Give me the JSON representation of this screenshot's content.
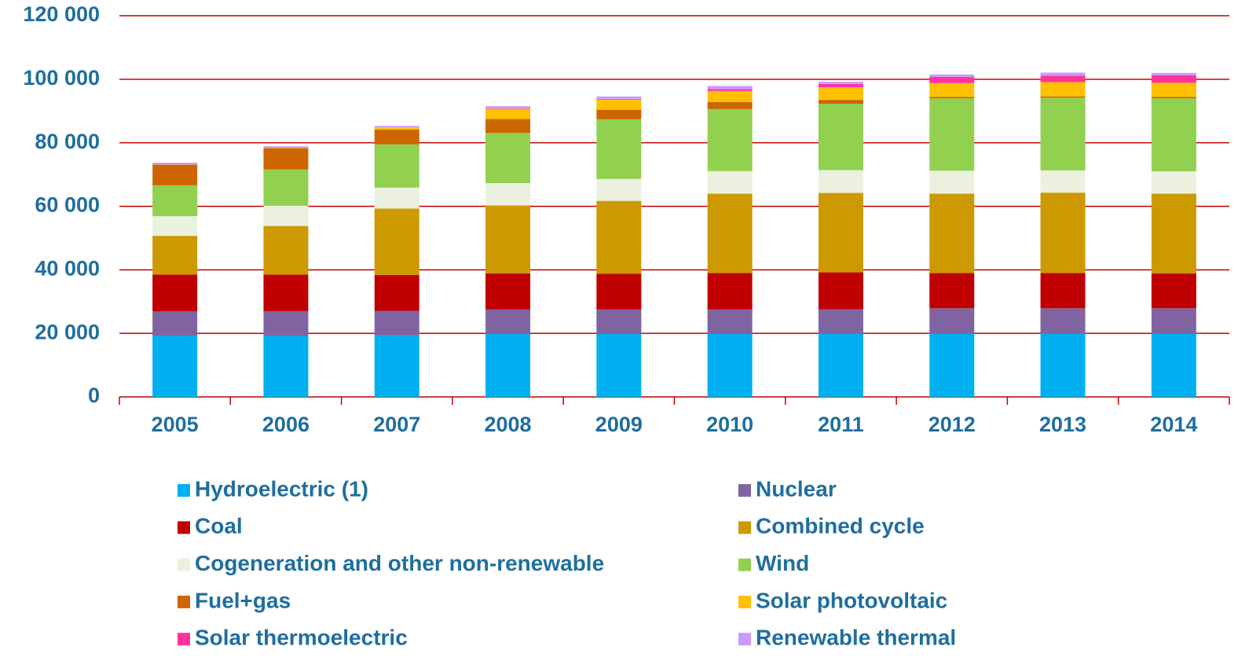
{
  "chart_data": {
    "type": "stacked_bar",
    "categories": [
      "2005",
      "2006",
      "2007",
      "2008",
      "2009",
      "2010",
      "2011",
      "2012",
      "2013",
      "2014"
    ],
    "series": [
      {
        "name": "Hydroelectric (1)",
        "color": "#00b0f0",
        "values": [
          19300,
          19300,
          19400,
          19800,
          19800,
          19800,
          19800,
          20000,
          20000,
          20000
        ]
      },
      {
        "name": "Nuclear",
        "color": "#8064a2",
        "values": [
          7600,
          7700,
          7700,
          7700,
          7700,
          7700,
          7800,
          7900,
          7900,
          7900
        ]
      },
      {
        "name": "Coal",
        "color": "#c00000",
        "values": [
          11600,
          11500,
          11300,
          11400,
          11300,
          11500,
          11600,
          11100,
          11100,
          11000
        ]
      },
      {
        "name": "Combined cycle",
        "color": "#cc9900",
        "values": [
          12200,
          15300,
          20900,
          21400,
          22900,
          25000,
          25000,
          25000,
          25300,
          25100
        ]
      },
      {
        "name": "Cogeneration and other non-renewable",
        "color": "#ebf1de",
        "values": [
          6200,
          6400,
          6600,
          7000,
          6900,
          7100,
          7200,
          7200,
          7000,
          7000
        ]
      },
      {
        "name": "Wind",
        "color": "#92d050",
        "values": [
          9700,
          11400,
          13600,
          15800,
          18800,
          19500,
          20900,
          22800,
          22900,
          23000
        ]
      },
      {
        "name": "Fuel+gas",
        "color": "#cc6600",
        "values": [
          6500,
          6700,
          4700,
          4400,
          3000,
          2200,
          1200,
          400,
          400,
          400
        ]
      },
      {
        "name": "Solar photovoltaic",
        "color": "#ffc000",
        "values": [
          50,
          100,
          600,
          3200,
          3200,
          3500,
          4000,
          4400,
          4500,
          4500
        ]
      },
      {
        "name": "Solar thermoelectric",
        "color": "#ff3399",
        "values": [
          0,
          0,
          0,
          100,
          200,
          600,
          1000,
          1900,
          2000,
          2300
        ]
      },
      {
        "name": "Renewable thermal",
        "color": "#cc99ff",
        "values": [
          600,
          500,
          500,
          700,
          800,
          1000,
          700,
          800,
          1000,
          800
        ]
      }
    ],
    "ylim": [
      0,
      120000
    ],
    "yticks": [
      0,
      {
        "value": 20000,
        "label": "20 000"
      },
      {
        "value": 40000,
        "label": "40 000"
      },
      {
        "value": 60000,
        "label": "60 000"
      },
      {
        "value": 80000,
        "label": "80 000"
      },
      {
        "value": 100000,
        "label": "100 000"
      },
      {
        "value": 120000,
        "label": "120 000"
      }
    ],
    "grid": true,
    "grid_color": "#c00000"
  }
}
